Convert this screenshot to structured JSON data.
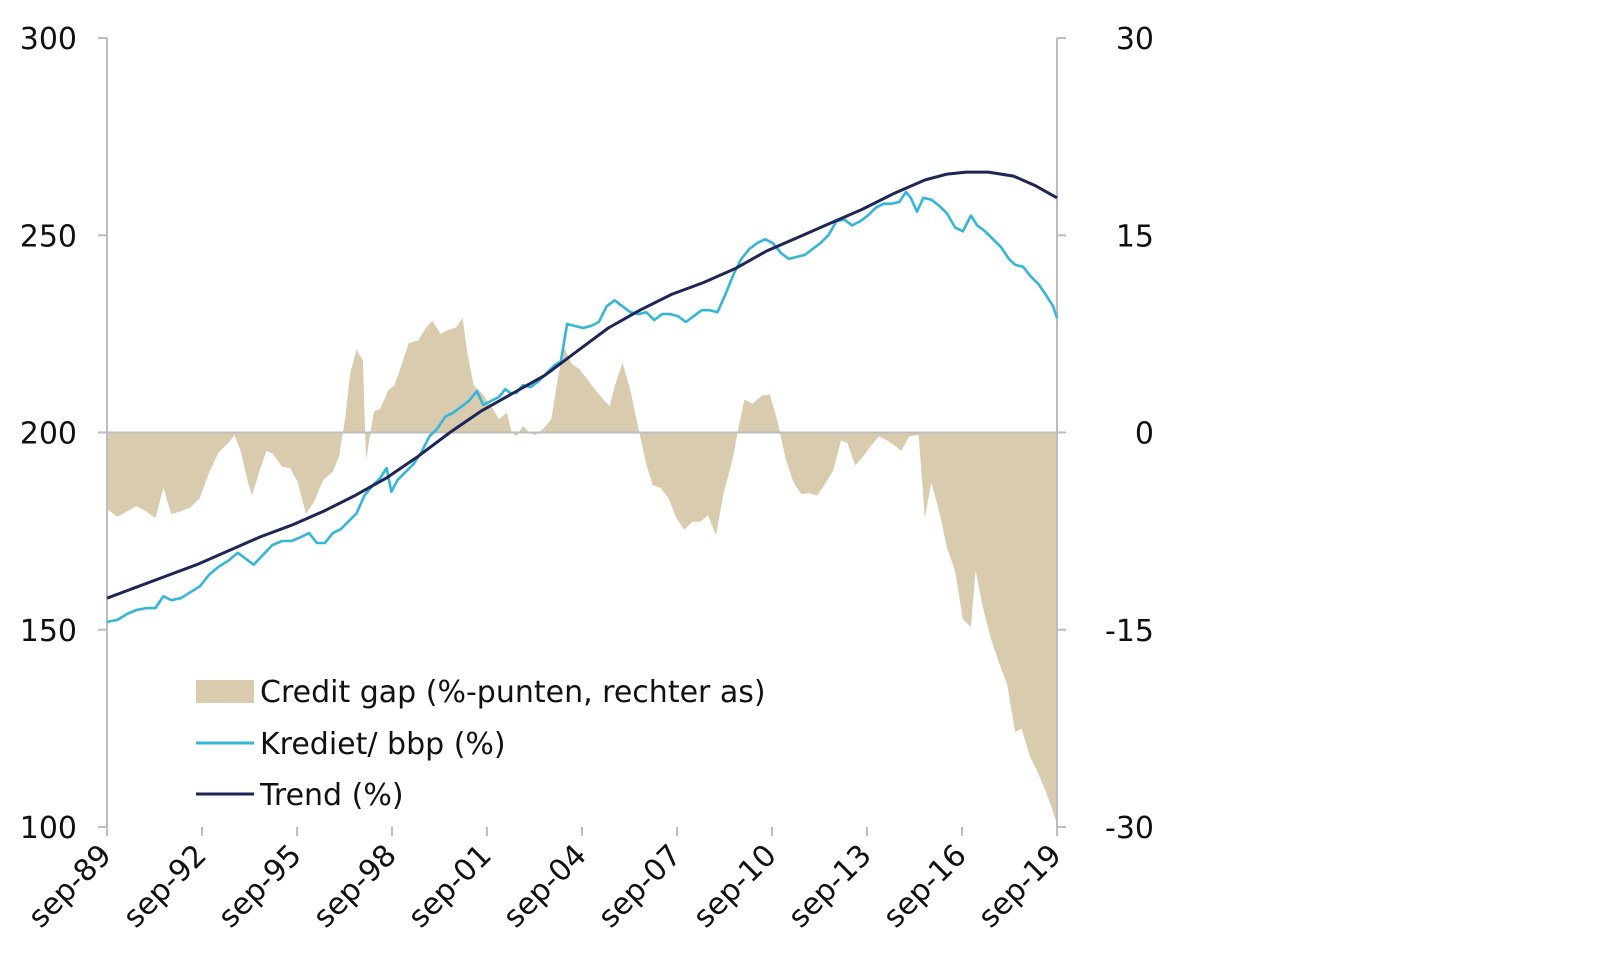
{
  "chart_data": {
    "type": "line",
    "left_axis": {
      "ylim": [
        100,
        300
      ],
      "ticks": [
        100,
        150,
        200,
        250,
        300
      ],
      "tick_labels": [
        "100",
        "150",
        "200",
        "250",
        "300"
      ]
    },
    "right_axis": {
      "ylim": [
        -30,
        30
      ],
      "ticks": [
        -30,
        -15,
        0,
        15,
        30
      ],
      "tick_labels": [
        "-30",
        "-15",
        "0",
        "15",
        "30"
      ]
    },
    "x_ticks": [
      1989.67,
      1992.67,
      1995.67,
      1998.67,
      2001.67,
      2004.67,
      2007.67,
      2010.67,
      2013.67,
      2016.67,
      2019.67
    ],
    "x_tick_labels": [
      "sep-89",
      "sep-92",
      "sep-95",
      "sep-98",
      "sep-01",
      "sep-04",
      "sep-07",
      "sep-10",
      "sep-13",
      "sep-16",
      "sep-19"
    ],
    "xlim": [
      1989.67,
      2019.67
    ],
    "legend_position": "bottom-left",
    "series": [
      {
        "name": "Credit gap (%-punten, rechter as)",
        "kind": "area",
        "axis": "right",
        "color": "#d8cbae",
        "points": [
          [
            1989.67,
            -5.8
          ],
          [
            1990.0,
            -6.4
          ],
          [
            1990.3,
            -6.0
          ],
          [
            1990.6,
            -5.6
          ],
          [
            1990.9,
            -6.0
          ],
          [
            1991.2,
            -6.5
          ],
          [
            1991.45,
            -4.2
          ],
          [
            1991.7,
            -6.2
          ],
          [
            1992.0,
            -6.0
          ],
          [
            1992.3,
            -5.7
          ],
          [
            1992.6,
            -5.0
          ],
          [
            1992.9,
            -3.0
          ],
          [
            1993.2,
            -1.5
          ],
          [
            1993.5,
            -0.8
          ],
          [
            1993.7,
            -0.2
          ],
          [
            1993.9,
            -1.5
          ],
          [
            1994.1,
            -3.6
          ],
          [
            1994.25,
            -4.8
          ],
          [
            1994.45,
            -3.2
          ],
          [
            1994.7,
            -1.4
          ],
          [
            1994.9,
            -1.6
          ],
          [
            1995.2,
            -2.6
          ],
          [
            1995.45,
            -2.7
          ],
          [
            1995.7,
            -3.8
          ],
          [
            1995.95,
            -6.2
          ],
          [
            1996.2,
            -5.3
          ],
          [
            1996.5,
            -3.6
          ],
          [
            1996.8,
            -3.0
          ],
          [
            1997.0,
            -1.8
          ],
          [
            1997.2,
            1.2
          ],
          [
            1997.35,
            4.5
          ],
          [
            1997.55,
            6.3
          ],
          [
            1997.75,
            5.5
          ],
          [
            1997.85,
            -2.1
          ],
          [
            1998.1,
            1.6
          ],
          [
            1998.3,
            1.8
          ],
          [
            1998.55,
            3.2
          ],
          [
            1998.75,
            3.6
          ],
          [
            1998.95,
            5.0
          ],
          [
            1999.2,
            6.8
          ],
          [
            1999.5,
            7.0
          ],
          [
            1999.75,
            8.0
          ],
          [
            1999.95,
            8.5
          ],
          [
            2000.2,
            7.5
          ],
          [
            2000.45,
            7.8
          ],
          [
            2000.7,
            8.0
          ],
          [
            2000.9,
            8.7
          ],
          [
            2001.05,
            6.0
          ],
          [
            2001.25,
            3.6
          ],
          [
            2001.5,
            3.0
          ],
          [
            2001.65,
            2.5
          ],
          [
            2001.85,
            1.8
          ],
          [
            2002.05,
            1.0
          ],
          [
            2002.3,
            1.5
          ],
          [
            2002.45,
            0.0
          ],
          [
            2002.6,
            -0.3
          ],
          [
            2002.8,
            0.5
          ],
          [
            2003.0,
            0.0
          ],
          [
            2003.2,
            -0.2
          ],
          [
            2003.45,
            0.3
          ],
          [
            2003.7,
            1.0
          ],
          [
            2003.9,
            4.0
          ],
          [
            2004.1,
            6.5
          ],
          [
            2004.35,
            5.2
          ],
          [
            2004.6,
            4.8
          ],
          [
            2004.85,
            4.0
          ],
          [
            2005.1,
            3.2
          ],
          [
            2005.35,
            2.5
          ],
          [
            2005.55,
            2.0
          ],
          [
            2005.7,
            3.5
          ],
          [
            2005.95,
            5.3
          ],
          [
            2006.2,
            3.2
          ],
          [
            2006.45,
            0.3
          ],
          [
            2006.7,
            -2.4
          ],
          [
            2006.9,
            -4.0
          ],
          [
            2007.15,
            -4.2
          ],
          [
            2007.4,
            -5.0
          ],
          [
            2007.65,
            -6.5
          ],
          [
            2007.9,
            -7.4
          ],
          [
            2008.15,
            -6.8
          ],
          [
            2008.4,
            -6.8
          ],
          [
            2008.65,
            -6.3
          ],
          [
            2008.9,
            -7.8
          ],
          [
            2009.15,
            -4.5
          ],
          [
            2009.4,
            -2.3
          ],
          [
            2009.6,
            0.2
          ],
          [
            2009.8,
            2.5
          ],
          [
            2010.05,
            2.2
          ],
          [
            2010.35,
            2.8
          ],
          [
            2010.6,
            2.9
          ],
          [
            2010.85,
            0.8
          ],
          [
            2011.1,
            -2.0
          ],
          [
            2011.35,
            -3.8
          ],
          [
            2011.6,
            -4.7
          ],
          [
            2011.85,
            -4.6
          ],
          [
            2012.1,
            -4.8
          ],
          [
            2012.35,
            -3.9
          ],
          [
            2012.6,
            -2.9
          ],
          [
            2012.85,
            -0.6
          ],
          [
            2013.05,
            -0.8
          ],
          [
            2013.3,
            -2.5
          ],
          [
            2013.55,
            -1.8
          ],
          [
            2013.8,
            -1.0
          ],
          [
            2014.05,
            -0.3
          ],
          [
            2014.3,
            -0.6
          ],
          [
            2014.55,
            -1.0
          ],
          [
            2014.75,
            -1.4
          ],
          [
            2015.0,
            -0.3
          ],
          [
            2015.3,
            -0.2
          ],
          [
            2015.5,
            -6.5
          ],
          [
            2015.7,
            -3.8
          ],
          [
            2015.95,
            -6.0
          ],
          [
            2016.2,
            -8.8
          ],
          [
            2016.45,
            -10.5
          ],
          [
            2016.7,
            -14.2
          ],
          [
            2016.95,
            -14.8
          ],
          [
            2017.1,
            -10.5
          ],
          [
            2017.35,
            -13.5
          ],
          [
            2017.6,
            -15.8
          ],
          [
            2017.85,
            -17.6
          ],
          [
            2018.1,
            -19.2
          ],
          [
            2018.35,
            -22.8
          ],
          [
            2018.55,
            -22.5
          ],
          [
            2018.8,
            -24.5
          ],
          [
            2019.05,
            -25.8
          ],
          [
            2019.3,
            -27.2
          ],
          [
            2019.5,
            -28.5
          ],
          [
            2019.67,
            -29.8
          ]
        ]
      },
      {
        "name": "Krediet/ bbp (%)",
        "kind": "line",
        "axis": "left",
        "color": "#35b6d9",
        "points": [
          [
            1989.67,
            152
          ],
          [
            1990.0,
            152.5
          ],
          [
            1990.3,
            154
          ],
          [
            1990.6,
            155
          ],
          [
            1990.9,
            155.5
          ],
          [
            1991.2,
            155.5
          ],
          [
            1991.45,
            158.5
          ],
          [
            1991.7,
            157.5
          ],
          [
            1992.0,
            158
          ],
          [
            1992.3,
            159.5
          ],
          [
            1992.6,
            161
          ],
          [
            1992.9,
            164
          ],
          [
            1993.2,
            166
          ],
          [
            1993.5,
            167.5
          ],
          [
            1993.8,
            169.5
          ],
          [
            1994.05,
            168
          ],
          [
            1994.3,
            166.5
          ],
          [
            1994.6,
            169
          ],
          [
            1994.9,
            171.5
          ],
          [
            1995.2,
            172.5
          ],
          [
            1995.5,
            172.5
          ],
          [
            1995.8,
            173.5
          ],
          [
            1996.05,
            174.5
          ],
          [
            1996.3,
            172
          ],
          [
            1996.55,
            172
          ],
          [
            1996.8,
            174.5
          ],
          [
            1997.05,
            175.5
          ],
          [
            1997.3,
            177.5
          ],
          [
            1997.55,
            179.5
          ],
          [
            1997.8,
            184
          ],
          [
            1998.05,
            186.5
          ],
          [
            1998.3,
            188.5
          ],
          [
            1998.5,
            191
          ],
          [
            1998.65,
            185
          ],
          [
            1998.85,
            188
          ],
          [
            1999.1,
            190
          ],
          [
            1999.35,
            192
          ],
          [
            1999.6,
            195
          ],
          [
            1999.85,
            199
          ],
          [
            2000.1,
            201
          ],
          [
            2000.35,
            204
          ],
          [
            2000.6,
            205
          ],
          [
            2000.85,
            206.5
          ],
          [
            2001.1,
            208
          ],
          [
            2001.35,
            210.5
          ],
          [
            2001.55,
            207
          ],
          [
            2001.8,
            208
          ],
          [
            2002.05,
            209
          ],
          [
            2002.25,
            211
          ],
          [
            2002.4,
            210
          ],
          [
            2002.6,
            210
          ],
          [
            2002.8,
            212
          ],
          [
            2003.05,
            211.5
          ],
          [
            2003.3,
            213
          ],
          [
            2003.55,
            215
          ],
          [
            2003.8,
            217
          ],
          [
            2004.0,
            218
          ],
          [
            2004.2,
            227.5
          ],
          [
            2004.45,
            227
          ],
          [
            2004.7,
            226.5
          ],
          [
            2004.95,
            227
          ],
          [
            2005.2,
            228
          ],
          [
            2005.45,
            232
          ],
          [
            2005.7,
            233.5
          ],
          [
            2005.95,
            232
          ],
          [
            2006.2,
            230.5
          ],
          [
            2006.45,
            230
          ],
          [
            2006.7,
            230.5
          ],
          [
            2006.95,
            228.5
          ],
          [
            2007.2,
            230
          ],
          [
            2007.45,
            230
          ],
          [
            2007.7,
            229.5
          ],
          [
            2007.95,
            228
          ],
          [
            2008.2,
            229.5
          ],
          [
            2008.45,
            231
          ],
          [
            2008.7,
            231
          ],
          [
            2008.95,
            230.5
          ],
          [
            2009.2,
            235
          ],
          [
            2009.45,
            240
          ],
          [
            2009.7,
            244
          ],
          [
            2009.95,
            246.5
          ],
          [
            2010.2,
            248
          ],
          [
            2010.45,
            249
          ],
          [
            2010.7,
            248
          ],
          [
            2010.95,
            245.5
          ],
          [
            2011.2,
            244
          ],
          [
            2011.45,
            244.5
          ],
          [
            2011.7,
            245
          ],
          [
            2011.95,
            246.5
          ],
          [
            2012.2,
            248
          ],
          [
            2012.45,
            250
          ],
          [
            2012.7,
            253.5
          ],
          [
            2012.95,
            254
          ],
          [
            2013.2,
            252.5
          ],
          [
            2013.45,
            253.5
          ],
          [
            2013.7,
            255
          ],
          [
            2013.95,
            257
          ],
          [
            2014.2,
            258
          ],
          [
            2014.45,
            258
          ],
          [
            2014.7,
            258.5
          ],
          [
            2014.9,
            261
          ],
          [
            2015.05,
            259.5
          ],
          [
            2015.25,
            256
          ],
          [
            2015.45,
            259.5
          ],
          [
            2015.7,
            259
          ],
          [
            2015.95,
            257.5
          ],
          [
            2016.2,
            255.5
          ],
          [
            2016.45,
            252
          ],
          [
            2016.7,
            251
          ],
          [
            2016.95,
            255
          ],
          [
            2017.15,
            252.5
          ],
          [
            2017.4,
            251
          ],
          [
            2017.65,
            249
          ],
          [
            2017.9,
            247
          ],
          [
            2018.15,
            244
          ],
          [
            2018.35,
            242.5
          ],
          [
            2018.6,
            242
          ],
          [
            2018.85,
            239.5
          ],
          [
            2019.1,
            237.5
          ],
          [
            2019.35,
            234.5
          ],
          [
            2019.55,
            232
          ],
          [
            2019.67,
            229
          ]
        ]
      },
      {
        "name": "Trend (%)",
        "kind": "line",
        "axis": "left",
        "color": "#1f2557",
        "points": [
          [
            1989.67,
            158
          ],
          [
            1990.5,
            160.5
          ],
          [
            1991.5,
            163.5
          ],
          [
            1992.5,
            166.5
          ],
          [
            1993.5,
            170
          ],
          [
            1994.5,
            173.5
          ],
          [
            1995.5,
            176.5
          ],
          [
            1996.5,
            180
          ],
          [
            1997.5,
            184
          ],
          [
            1998.5,
            188.5
          ],
          [
            1999.5,
            194
          ],
          [
            2000.5,
            200
          ],
          [
            2001.5,
            205.5
          ],
          [
            2002.5,
            210
          ],
          [
            2003.5,
            214.5
          ],
          [
            2004.5,
            220.5
          ],
          [
            2005.5,
            226.5
          ],
          [
            2006.5,
            231
          ],
          [
            2007.5,
            235
          ],
          [
            2008.5,
            238
          ],
          [
            2009.5,
            241.5
          ],
          [
            2010.5,
            246
          ],
          [
            2011.5,
            249.5
          ],
          [
            2012.5,
            253
          ],
          [
            2013.5,
            256.5
          ],
          [
            2014.5,
            260.5
          ],
          [
            2015.5,
            264
          ],
          [
            2016.2,
            265.5
          ],
          [
            2016.8,
            266
          ],
          [
            2017.5,
            266
          ],
          [
            2018.3,
            265
          ],
          [
            2019.0,
            262.5
          ],
          [
            2019.67,
            259.5
          ]
        ]
      }
    ]
  }
}
